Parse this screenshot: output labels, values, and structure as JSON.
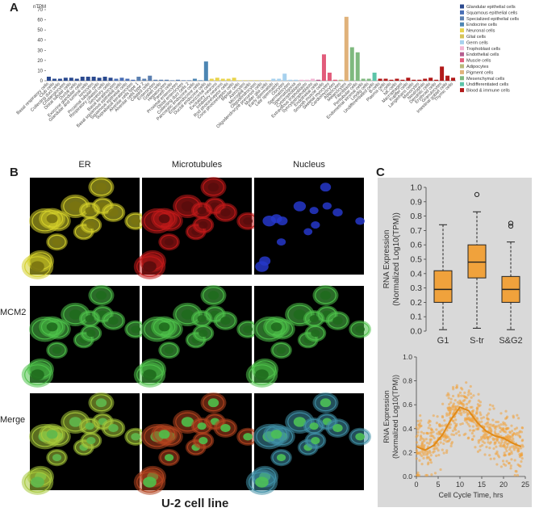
{
  "panels": {
    "a": "A",
    "b": "B",
    "c": "C"
  },
  "chart_data": [
    {
      "type": "bar",
      "title": "",
      "ylabel": "nTPM",
      "ylim": [
        0,
        70
      ],
      "yticks": [
        0,
        10,
        20,
        30,
        40,
        50,
        60,
        70
      ],
      "legend_position": "right",
      "legend": [
        {
          "name": "Glandular epithelial cells",
          "color": "#2b4a8f"
        },
        {
          "name": "Squamous epithelial cells",
          "color": "#4a6fb5"
        },
        {
          "name": "Specialized epithelial cells",
          "color": "#5b7fb0"
        },
        {
          "name": "Endocrine cells",
          "color": "#4d86b3"
        },
        {
          "name": "Neuronal cells",
          "color": "#e8d44d"
        },
        {
          "name": "Glial cells",
          "color": "#d6c35a"
        },
        {
          "name": "Germ cells",
          "color": "#a7d1ee"
        },
        {
          "name": "Trophoblast cells",
          "color": "#f3b6d4"
        },
        {
          "name": "Endothelial cells",
          "color": "#b55e8f"
        },
        {
          "name": "Muscle cells",
          "color": "#e25c7b"
        },
        {
          "name": "Adipocytes",
          "color": "#b9b97c"
        },
        {
          "name": "Pigment cells",
          "color": "#e0b27a"
        },
        {
          "name": "Mesenchymal cells",
          "color": "#7fb97f"
        },
        {
          "name": "Undifferentiated cells",
          "color": "#5cc4a8"
        },
        {
          "name": "Blood & immune cells",
          "color": "#b21a1a"
        }
      ],
      "categories": [
        "Basal respiratory cells",
        "Club cells",
        "Collecting duct cells",
        "Cholangiocytes",
        "Distal tubular cells",
        "Ductal cells",
        "Exocrine glandular cells",
        "Glandular and luminal cells",
        "Ionocytes",
        "Proximal tubular cells",
        "Respiratory ciliated cells",
        "Secretory cells",
        "Basal keratinocytes",
        "Basal squamous epithelial cells",
        "Squamous epithelial cells",
        "Suprabasal keratinocytes",
        "Alveolar cells type 1",
        "Alveolar cells type 2",
        "Ciliated cells",
        "Enterocytes",
        "Goblet cells",
        "Hepatocytes",
        "Paneth cells",
        "Proximal enterocytes",
        "Distal enterocytes",
        "Collecting duct cells 2",
        "Pancreatic endocrine cells",
        "Enteroendocrine cells",
        "Ductal endocrine cells",
        "Horizontal cells",
        "Excitatory neurons",
        "Inhibitory neurons",
        "Rod photoreceptor cells",
        "Cone photoreceptor cells",
        "Bipolar cells",
        "Astrocytes",
        "Microglial cells",
        "Oligodendrocytes",
        "Oligodendrocyte precursor cells",
        "Muller glia cells",
        "Early spermatids",
        "Late spermatids",
        "Oocytes",
        "Spermatocytes",
        "Spermatogonia",
        "Cytotrophoblasts",
        "Extravillous trophoblasts",
        "Syncytiotrophoblasts",
        "Endothelial cells",
        "Smooth muscle cells",
        "Skeletal myocytes",
        "Cardiomyocytes",
        "Adipocytes",
        "Melanocytes",
        "Fibroblasts",
        "Peritubular cells",
        "Endometrial stromal cells",
        "Leydig cells",
        "Undifferentiated cells",
        "B-cells",
        "Plasma cells",
        "T-cells",
        "NK-cells",
        "Macrophages",
        "Kupffer cells",
        "Langerhans cells",
        "Monocytes",
        "Neutrophils",
        "Dendritic cells",
        "Erythroid cells",
        "Granulocytes",
        "Intestinal goblet cells",
        "Thymic cells"
      ],
      "values": [
        4,
        2,
        2,
        3,
        3,
        2,
        4,
        4,
        4,
        3,
        4,
        3,
        2,
        3,
        2,
        1,
        4,
        2,
        5,
        1,
        1,
        1,
        0.5,
        1,
        0.5,
        0.5,
        2,
        0.5,
        19,
        2,
        3,
        2,
        2,
        3,
        0.5,
        0.5,
        0.5,
        0.5,
        0.5,
        0.5,
        2,
        2,
        7,
        1,
        1,
        1,
        1,
        2,
        1,
        26,
        8,
        1,
        1,
        63,
        33,
        28,
        2,
        2,
        8,
        2,
        2,
        1,
        2,
        1,
        3,
        1,
        1,
        2,
        3,
        1,
        14,
        5,
        3
      ],
      "colors_by_category_group": true
    },
    {
      "type": "box",
      "ylabel": "RNA Expression\n(Normalized Log10(TPM))",
      "ylim": [
        0,
        1.0
      ],
      "yticks": [
        0.0,
        0.1,
        0.2,
        0.3,
        0.4,
        0.5,
        0.6,
        0.7,
        0.8,
        0.9,
        1.0
      ],
      "categories": [
        "G1",
        "S-tr",
        "S&G2"
      ],
      "boxes": [
        {
          "q1": 0.2,
          "median": 0.29,
          "q3": 0.42,
          "whisker_low": 0.01,
          "whisker_high": 0.74,
          "outliers": []
        },
        {
          "q1": 0.37,
          "median": 0.48,
          "q3": 0.6,
          "whisker_low": 0.02,
          "whisker_high": 0.83,
          "outliers": [
            0.95
          ]
        },
        {
          "q1": 0.2,
          "median": 0.29,
          "q3": 0.38,
          "whisker_low": 0.01,
          "whisker_high": 0.62,
          "outliers": [
            0.73,
            0.75
          ]
        }
      ]
    },
    {
      "type": "scatter",
      "xlabel": "Cell Cycle Time, hrs",
      "ylabel": "RNA Expression\n(Normalized Log10(TPM))",
      "xlim": [
        0,
        25
      ],
      "ylim": [
        0,
        1.0
      ],
      "xticks": [
        0,
        5,
        10,
        15,
        20,
        25
      ],
      "yticks": [
        0.0,
        0.2,
        0.4,
        0.6,
        0.8,
        1.0
      ],
      "trend": {
        "x": [
          0,
          2,
          4,
          6,
          8,
          10,
          12,
          14,
          16,
          18,
          20,
          22,
          24
        ],
        "y": [
          0.25,
          0.22,
          0.26,
          0.35,
          0.48,
          0.58,
          0.55,
          0.45,
          0.38,
          0.34,
          0.32,
          0.28,
          0.25
        ]
      }
    }
  ],
  "panel_b": {
    "columns": [
      "ER",
      "Microtubules",
      "Nucleus"
    ],
    "rows": [
      "",
      "MCM2",
      "Merge"
    ],
    "caption": "U-2 cell line"
  }
}
